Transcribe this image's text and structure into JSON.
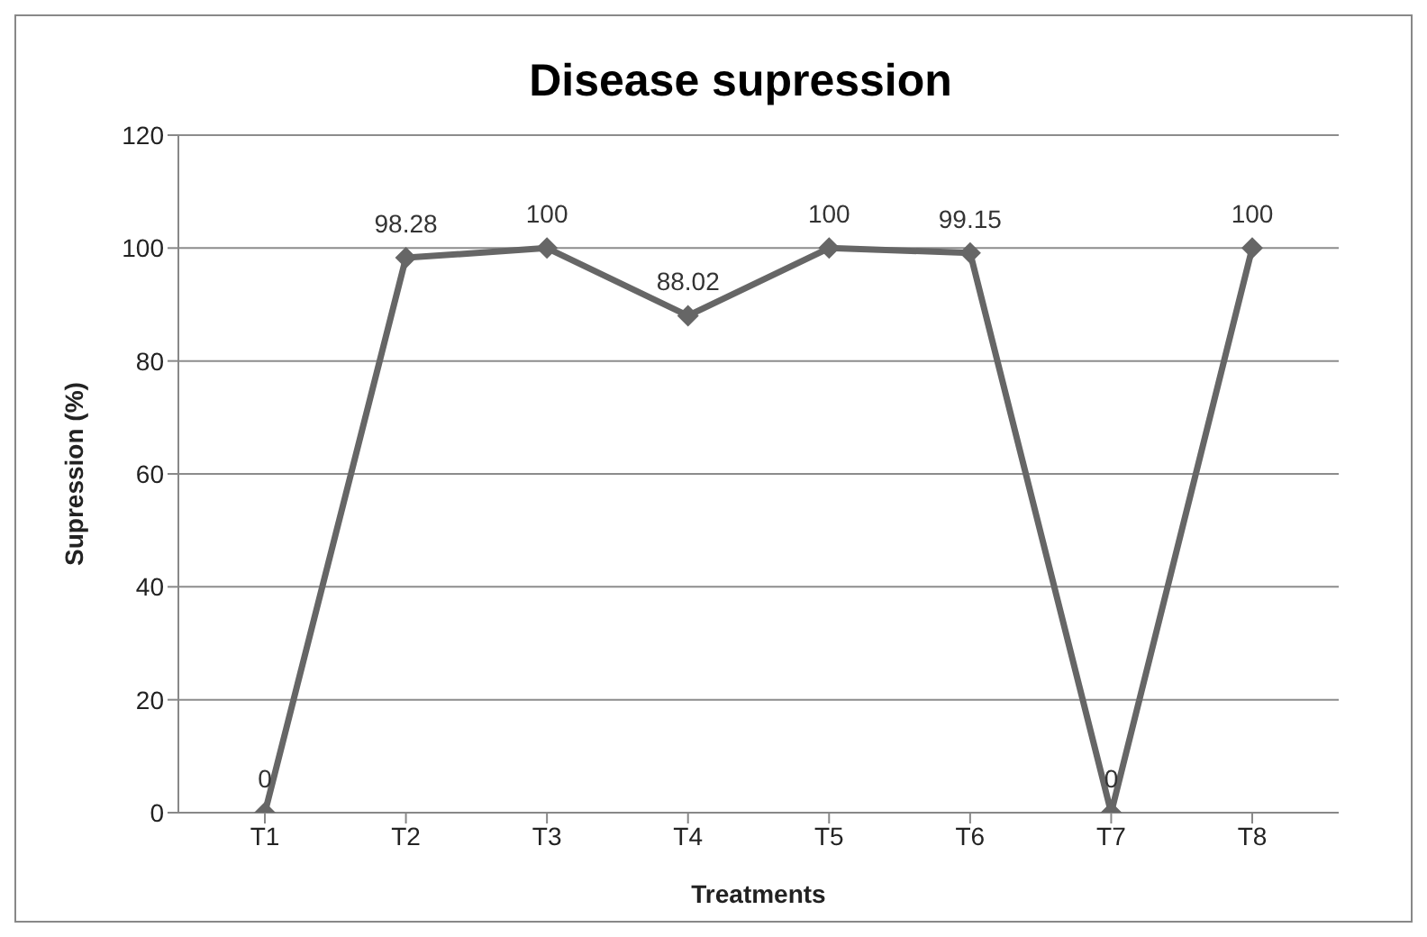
{
  "chart_data": {
    "type": "line",
    "title": "Disease supression",
    "xlabel": "Treatments",
    "ylabel": "Supression (%)",
    "categories": [
      "T1",
      "T2",
      "T3",
      "T4",
      "T5",
      "T6",
      "T7",
      "T8"
    ],
    "series": [
      {
        "color": "#666666",
        "values": [
          0,
          98.28,
          100,
          88.02,
          100,
          99.15,
          0,
          100
        ]
      }
    ],
    "ylim": [
      0,
      120
    ],
    "yticks": [
      0,
      20,
      40,
      60,
      80,
      100,
      120
    ],
    "grid": "y",
    "marker": "diamond",
    "line_style": "solid",
    "data_labels": true
  }
}
